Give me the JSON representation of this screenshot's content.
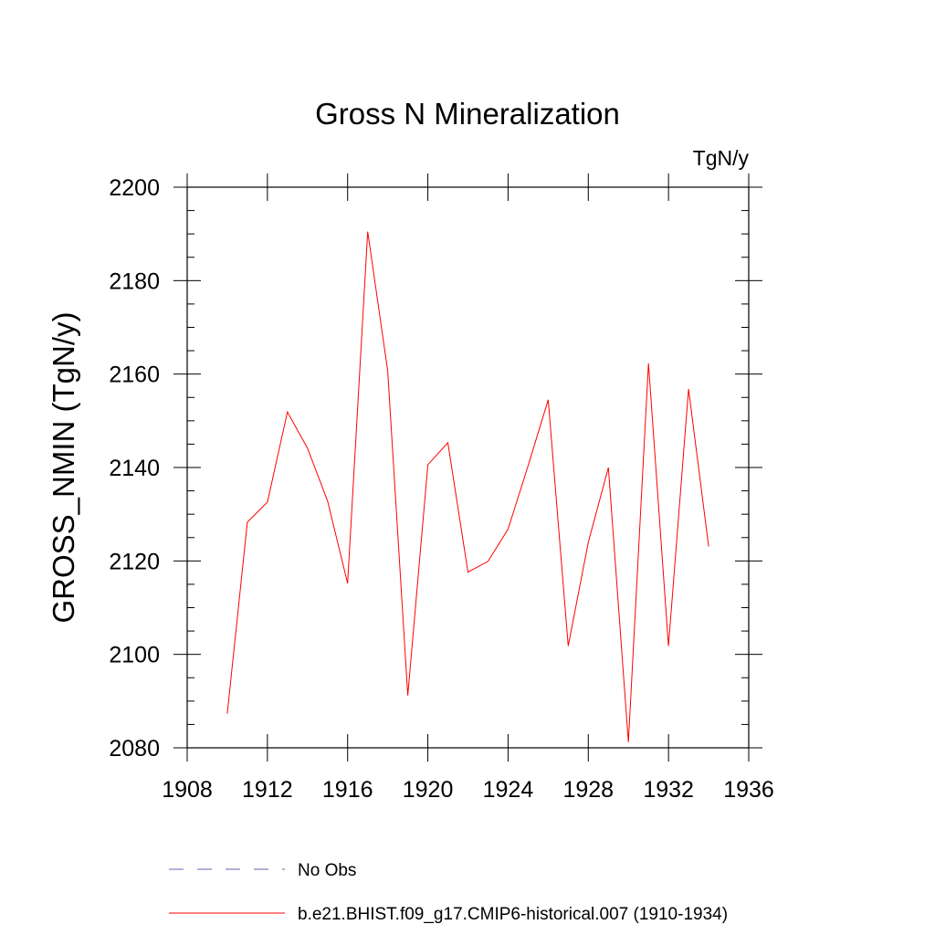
{
  "chart_data": {
    "type": "line",
    "title": "Gross N Mineralization",
    "units_label": "TgN/y",
    "ylabel": "GROSS_NMIN  (TgN/y)",
    "xlabel": "",
    "xlim": [
      1908,
      1936
    ],
    "ylim": [
      2080,
      2200
    ],
    "x_ticks": [
      1908,
      1912,
      1916,
      1920,
      1924,
      1928,
      1932,
      1936
    ],
    "y_ticks": [
      2080,
      2100,
      2120,
      2140,
      2160,
      2180,
      2200
    ],
    "grid": false,
    "legend_position": "bottom",
    "series": [
      {
        "name": "b.e21.BHIST.f09_g17.CMIP6-historical.007 (1910-1934)",
        "color": "#ff0000",
        "style": "solid",
        "x": [
          1910,
          1911,
          1912,
          1913,
          1914,
          1915,
          1916,
          1917,
          1918,
          1919,
          1920,
          1921,
          1922,
          1923,
          1924,
          1925,
          1926,
          1927,
          1928,
          1929,
          1930,
          1931,
          1932,
          1933,
          1934
        ],
        "y": [
          2087.3,
          2128.3,
          2132.6,
          2151.9,
          2144.1,
          2132.8,
          2115.2,
          2190.5,
          2160.7,
          2091.2,
          2140.6,
          2145.3,
          2117.6,
          2119.9,
          2126.8,
          2140.4,
          2154.5,
          2101.8,
          2124.0,
          2140.0,
          2081.2,
          2162.3,
          2101.8,
          2156.8,
          2123.1
        ]
      }
    ],
    "legend": [
      {
        "label": "No Obs",
        "color": "#6b5fb0",
        "style": "dashed"
      },
      {
        "label": "b.e21.BHIST.f09_g17.CMIP6-historical.007 (1910-1934)",
        "color": "#ff0000",
        "style": "solid"
      }
    ]
  }
}
